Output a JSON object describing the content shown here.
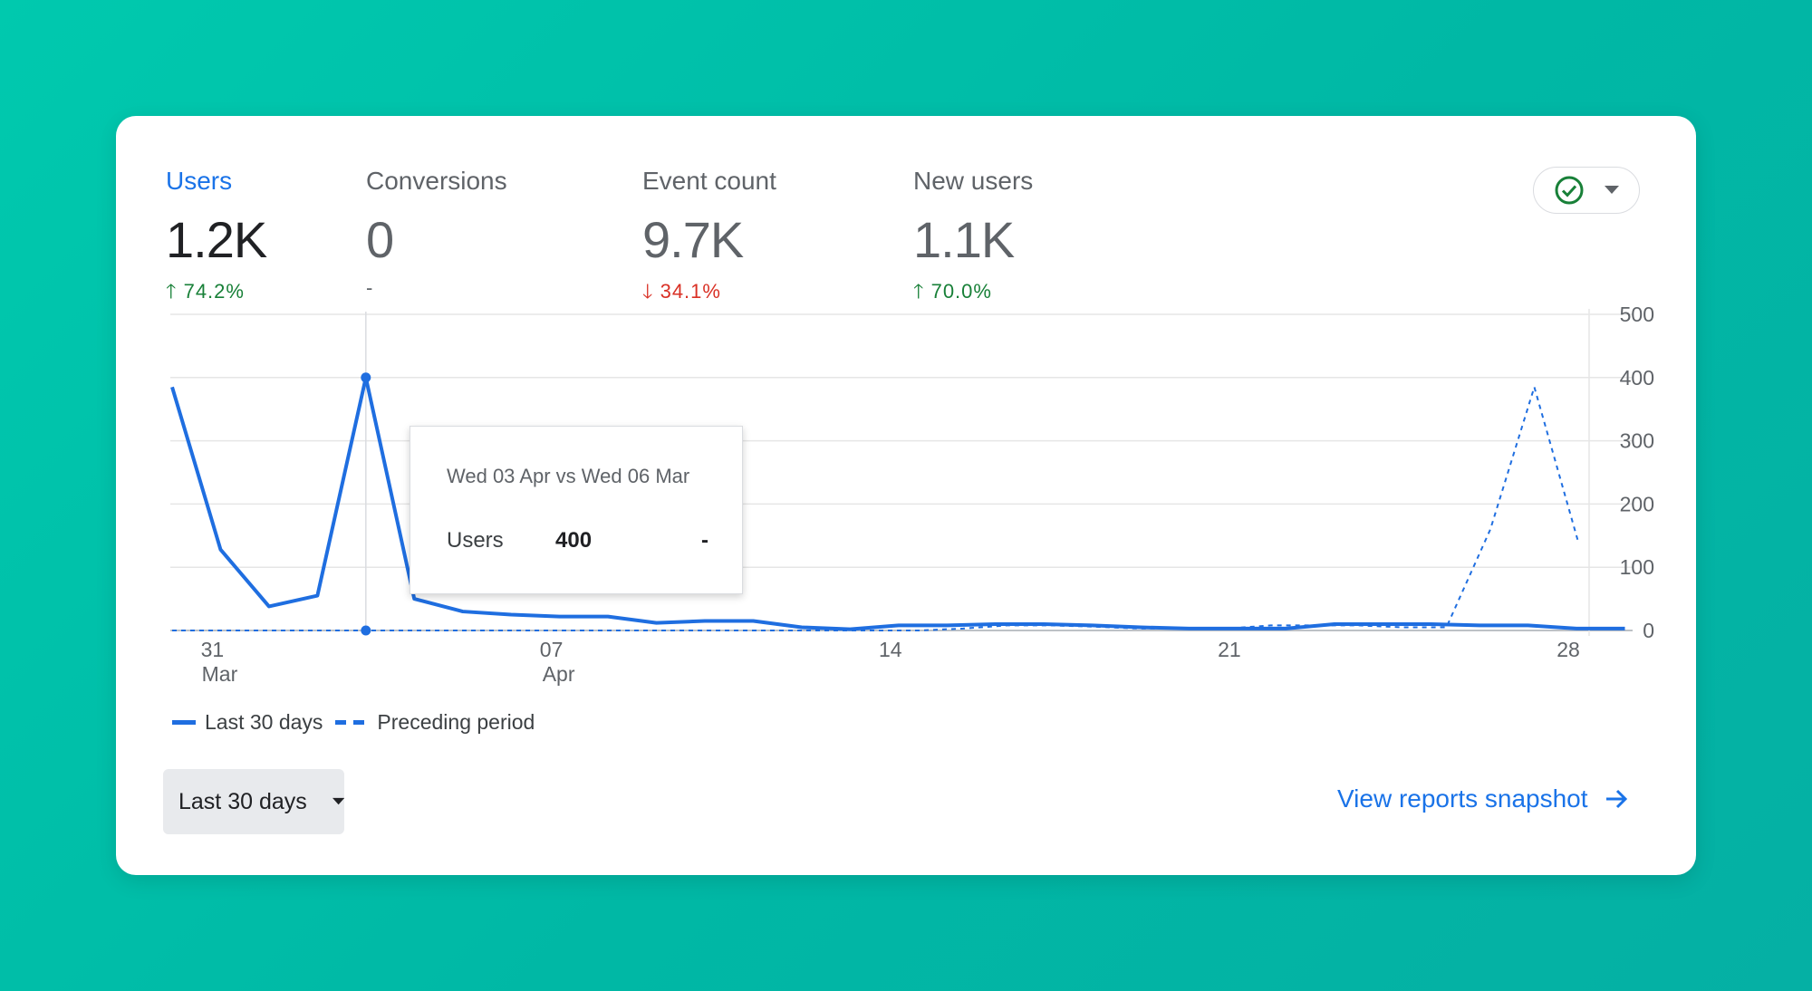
{
  "metrics": [
    {
      "label": "Users",
      "value": "1.2K",
      "change": "74.2%",
      "direction": "up"
    },
    {
      "label": "Conversions",
      "value": "0",
      "change": "-",
      "direction": "neutral"
    },
    {
      "label": "Event count",
      "value": "9.7K",
      "change": "34.1%",
      "direction": "down"
    },
    {
      "label": "New users",
      "value": "1.1K",
      "change": "70.0%",
      "direction": "up"
    }
  ],
  "compare_button": {
    "status_icon": "check-circle-icon",
    "caret_icon": "caret-down-icon"
  },
  "tooltip": {
    "title": "Wed 03 Apr vs Wed 06 Mar",
    "metric": "Users",
    "current": "400",
    "previous": "-"
  },
  "legend": {
    "current": "Last 30 days",
    "previous": "Preceding period"
  },
  "date_range": {
    "label": "Last 30 days"
  },
  "view_link": {
    "label": "View reports snapshot"
  },
  "colors": {
    "accent": "#1a73e8",
    "line": "#1f6ee0",
    "up": "#188038",
    "down": "#d93025",
    "grid": "#e0e0e0"
  },
  "chart_data": {
    "type": "line",
    "y_ticks": [
      "0",
      "100",
      "200",
      "300",
      "400",
      "500"
    ],
    "ylim": [
      0,
      500
    ],
    "x_ticks": [
      {
        "day": 2,
        "label1": "31",
        "label2": "Mar"
      },
      {
        "day": 9,
        "label1": "07",
        "label2": "Apr"
      },
      {
        "day": 16,
        "label1": "14",
        "label2": ""
      },
      {
        "day": 23,
        "label1": "21",
        "label2": ""
      },
      {
        "day": 30,
        "label1": "28",
        "label2": ""
      }
    ],
    "xlim": [
      1,
      30
    ],
    "highlight_day": 5,
    "series": [
      {
        "name": "Last 30 days",
        "style": "solid",
        "values": [
          385,
          128,
          38,
          55,
          400,
          50,
          30,
          25,
          22,
          22,
          12,
          15,
          15,
          5,
          2,
          8,
          8,
          10,
          10,
          8,
          5,
          3,
          3,
          3,
          10,
          10,
          10,
          8,
          8,
          3,
          3
        ]
      },
      {
        "name": "Preceding period",
        "style": "dashed",
        "values": [
          0,
          0,
          0,
          0,
          0,
          0,
          0,
          0,
          0,
          0,
          0,
          0,
          0,
          0,
          0,
          0,
          0,
          0,
          3,
          8,
          8,
          6,
          3,
          3,
          3,
          8,
          8,
          8,
          5,
          5,
          160,
          385,
          140
        ]
      }
    ]
  }
}
